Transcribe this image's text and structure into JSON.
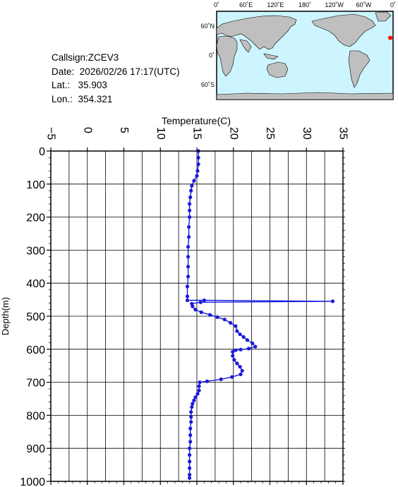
{
  "station": {
    "callsign_label": "Callsign:",
    "callsign": "ZCEV3",
    "date_label": "Date:",
    "date": "2026/02/26 17:17(UTC)",
    "lat_label": "Lat.:",
    "lat": "35.903",
    "lon_label": "Lon.:",
    "lon": "354.321"
  },
  "map": {
    "lon_ticks": [
      "0˚",
      "60˚E",
      "120˚E",
      "180˚",
      "120˚W",
      "60˚W",
      "0˚"
    ],
    "lat_ticks": [
      "60˚N",
      "0˚",
      "60˚S"
    ],
    "ocean_color": "#ccf5ff",
    "land_color": "#bfbfbf",
    "marker_color": "#ff0000",
    "marker_lon": 354.321,
    "marker_lat": 35.903
  },
  "chart_data": {
    "type": "line",
    "xlabel": "Temperature(C)",
    "ylabel": "Depth(m)",
    "xlim": [
      -5,
      35
    ],
    "ylim": [
      1000,
      0
    ],
    "x_ticks": [
      -5,
      0,
      5,
      10,
      15,
      20,
      25,
      30,
      35
    ],
    "y_ticks": [
      0,
      100,
      200,
      300,
      400,
      500,
      600,
      700,
      800,
      900,
      1000
    ],
    "grid": true,
    "series_color": "#1a1adc",
    "series": [
      {
        "points": [
          [
            15.2,
            0
          ],
          [
            15.2,
            20
          ],
          [
            15.2,
            40
          ],
          [
            15.1,
            60
          ],
          [
            15.0,
            75
          ],
          [
            14.6,
            90
          ],
          [
            14.3,
            105
          ],
          [
            14.2,
            120
          ],
          [
            14.1,
            140
          ],
          [
            14.0,
            160
          ],
          [
            14.0,
            180
          ],
          [
            14.0,
            200
          ],
          [
            13.9,
            230
          ],
          [
            13.9,
            260
          ],
          [
            13.8,
            290
          ],
          [
            13.8,
            320
          ],
          [
            13.8,
            350
          ],
          [
            13.8,
            380
          ],
          [
            13.7,
            410
          ],
          [
            13.7,
            440
          ],
          [
            13.7,
            452
          ],
          [
            16.0,
            452
          ],
          [
            33.6,
            455
          ],
          [
            15.5,
            458
          ],
          [
            14.3,
            462
          ],
          [
            14.4,
            470
          ],
          [
            14.8,
            480
          ],
          [
            15.6,
            488
          ],
          [
            16.8,
            496
          ],
          [
            17.8,
            503
          ],
          [
            18.8,
            510
          ],
          [
            19.6,
            520
          ],
          [
            20.3,
            530
          ],
          [
            20.5,
            545
          ],
          [
            20.9,
            555
          ],
          [
            21.4,
            563
          ],
          [
            21.9,
            572
          ],
          [
            22.6,
            582
          ],
          [
            23.0,
            592
          ],
          [
            22.1,
            598
          ],
          [
            21.0,
            601
          ],
          [
            20.3,
            603
          ],
          [
            19.9,
            608
          ],
          [
            19.9,
            620
          ],
          [
            20.1,
            632
          ],
          [
            20.5,
            643
          ],
          [
            20.9,
            653
          ],
          [
            21.2,
            665
          ],
          [
            21.0,
            676
          ],
          [
            19.8,
            684
          ],
          [
            18.3,
            691
          ],
          [
            16.4,
            697
          ],
          [
            15.4,
            700
          ],
          [
            15.3,
            712
          ],
          [
            15.3,
            725
          ],
          [
            15.1,
            735
          ],
          [
            14.8,
            745
          ],
          [
            14.6,
            755
          ],
          [
            14.4,
            765
          ],
          [
            14.3,
            775
          ],
          [
            14.2,
            790
          ],
          [
            14.2,
            805
          ],
          [
            14.2,
            820
          ],
          [
            14.1,
            840
          ],
          [
            14.1,
            860
          ],
          [
            14.1,
            880
          ],
          [
            14.0,
            900
          ],
          [
            14.0,
            920
          ],
          [
            14.0,
            940
          ],
          [
            14.0,
            960
          ],
          [
            14.0,
            980
          ],
          [
            14.0,
            990
          ]
        ]
      }
    ]
  }
}
